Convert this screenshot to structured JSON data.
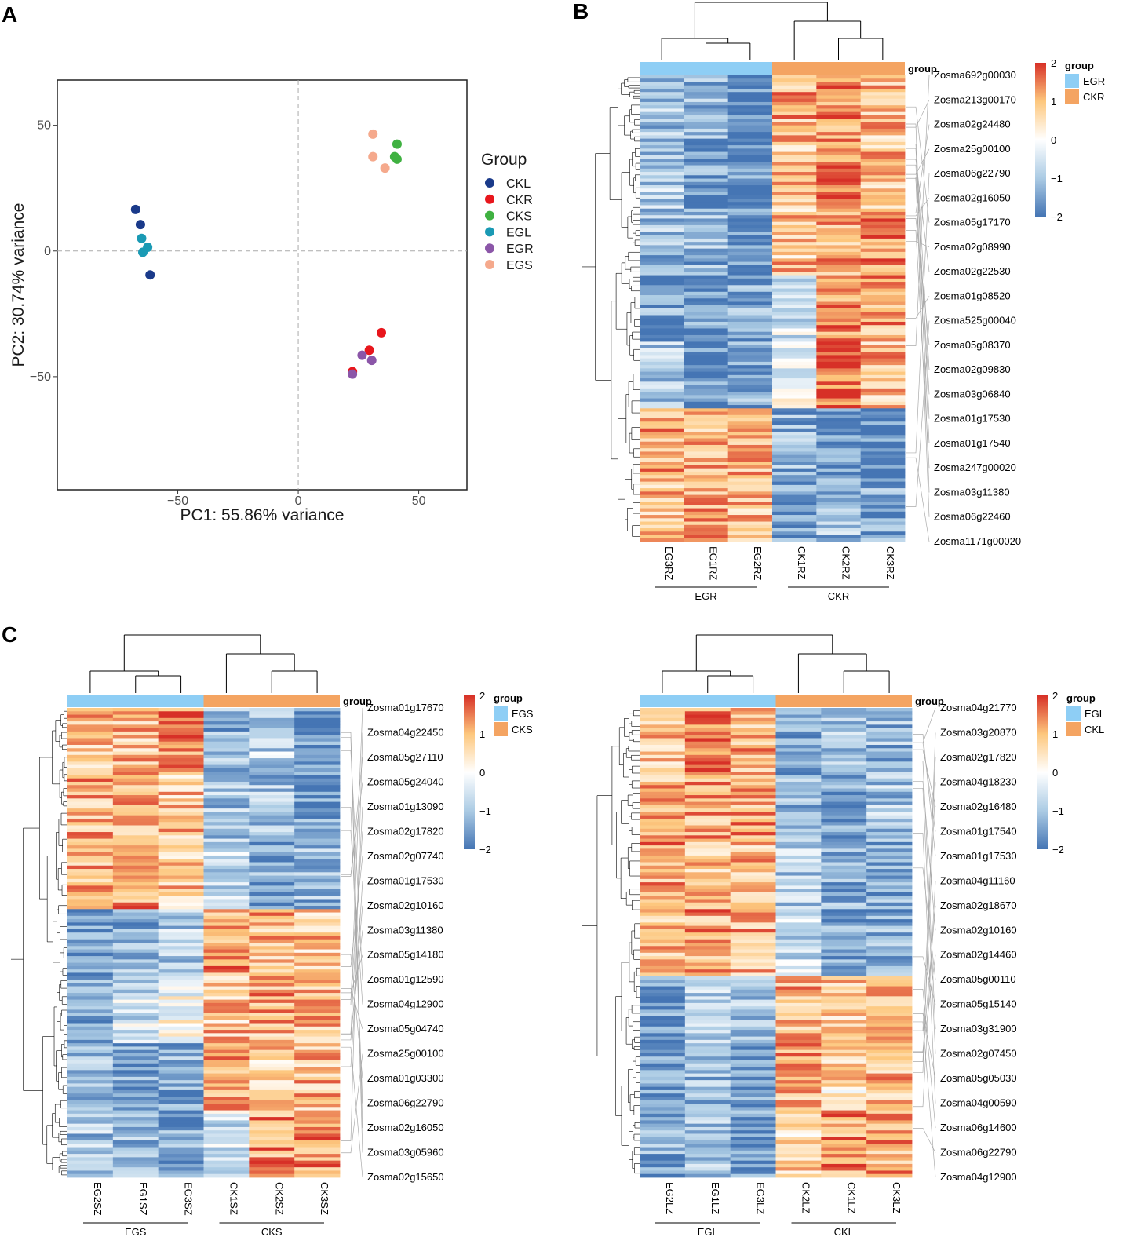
{
  "panels": {
    "a": "A",
    "b": "B",
    "c": "C"
  },
  "chart_data": [
    {
      "type": "scatter",
      "panel": "A",
      "xlabel": "PC1: 55.86% variance",
      "ylabel": "PC2: 30.74% variance",
      "xlim": [
        -100,
        70
      ],
      "ylim": [
        -95,
        68
      ],
      "xticks": [
        -50,
        0,
        50
      ],
      "yticks": [
        -50,
        0,
        50
      ],
      "xtick_labels": [
        "−50",
        "0",
        "50"
      ],
      "ytick_labels": [
        "−50",
        "0",
        "50"
      ],
      "legend_title": "Group",
      "series": [
        {
          "name": "CKL",
          "color": "#1a3a8a",
          "points": [
            [
              -67.5,
              16.5
            ],
            [
              -65.5,
              10.5
            ],
            [
              -61.5,
              -9.5
            ]
          ]
        },
        {
          "name": "CKR",
          "color": "#e8161c",
          "points": [
            [
              34.5,
              -32.5
            ],
            [
              29.5,
              -39.5
            ],
            [
              22.5,
              -48.0
            ]
          ]
        },
        {
          "name": "CKS",
          "color": "#3fb141",
          "points": [
            [
              41.0,
              42.5
            ],
            [
              40.0,
              37.5
            ],
            [
              41.0,
              36.5
            ]
          ]
        },
        {
          "name": "EGL",
          "color": "#1a9ab4",
          "points": [
            [
              -65.0,
              5.0
            ],
            [
              -62.5,
              1.5
            ],
            [
              -64.5,
              -0.5
            ]
          ]
        },
        {
          "name": "EGR",
          "color": "#8b56a8",
          "points": [
            [
              26.5,
              -41.5
            ],
            [
              30.5,
              -43.5
            ],
            [
              22.5,
              -49.0
            ]
          ]
        },
        {
          "name": "EGS",
          "color": "#f5a98c",
          "points": [
            [
              31.0,
              46.5
            ],
            [
              31.0,
              37.5
            ],
            [
              36.0,
              33.0
            ]
          ]
        }
      ]
    },
    {
      "type": "heatmap",
      "panel": "B",
      "columns": [
        "EG3RZ",
        "EG1RZ",
        "EG2RZ",
        "CK1RZ",
        "CK2RZ",
        "CK3RZ"
      ],
      "groups": [
        "EGR",
        "CKR"
      ],
      "row_pattern": [
        [
          -1,
          -1.2,
          -1.8,
          1.1,
          1.3,
          0.9
        ],
        [
          -0.9,
          -1.5,
          -1.7,
          0.8,
          1.6,
          1.0
        ],
        [
          -1.1,
          -1.2,
          -1.6,
          0.9,
          1.1,
          1.4
        ],
        [
          -1.4,
          -1.6,
          -1.3,
          -0.6,
          1.5,
          1.2
        ],
        [
          -1.0,
          -1.7,
          -1.4,
          -0.3,
          1.7,
          1.0
        ],
        [
          1.1,
          1.0,
          1.0,
          -1.2,
          -1.5,
          -1.8
        ],
        [
          1.0,
          1.1,
          0.9,
          -1.6,
          -1.1,
          -1.4
        ]
      ],
      "genes": [
        "Zosma692g00030",
        "Zosma213g00170",
        "Zosma02g24480",
        "Zosma25g00100",
        "Zosma06g22790",
        "Zosma02g16050",
        "Zosma05g17170",
        "Zosma02g08990",
        "Zosma02g22530",
        "Zosma01g08520",
        "Zosma525g00040",
        "Zosma05g08370",
        "Zosma02g09830",
        "Zosma03g06840",
        "Zosma01g17530",
        "Zosma01g17540",
        "Zosma247g00020",
        "Zosma03g11380",
        "Zosma06g22460",
        "Zosma1171g00020"
      ],
      "legend": {
        "title": "group",
        "ticks": [
          "2",
          "1",
          "0",
          "−1",
          "−2"
        ],
        "groups": [
          "EGR",
          "CKR"
        ]
      },
      "annotation_label": "group"
    },
    {
      "type": "heatmap",
      "panel": "C-left",
      "columns": [
        "EG2SZ",
        "EG1SZ",
        "EG3SZ",
        "CK1SZ",
        "CK2SZ",
        "CK3SZ"
      ],
      "groups": [
        "EGS",
        "CKS"
      ],
      "row_pattern": [
        [
          0.9,
          1.0,
          1.3,
          -1.2,
          -0.8,
          -1.6
        ],
        [
          1.1,
          1.2,
          0.9,
          -1.0,
          -1.1,
          -1.5
        ],
        [
          1.0,
          1.3,
          0.8,
          -0.8,
          -1.4,
          -1.2
        ],
        [
          -1.6,
          -1.2,
          -0.9,
          1.3,
          1.0,
          0.9
        ],
        [
          -1.4,
          -0.6,
          0.0,
          0.9,
          1.1,
          1.0
        ],
        [
          -1.2,
          -1.5,
          -1.3,
          1.2,
          0.8,
          1.0
        ],
        [
          -1.0,
          -1.1,
          -1.4,
          -0.5,
          1.3,
          1.4
        ]
      ],
      "genes": [
        "Zosma01g17670",
        "Zosma04g22450",
        "Zosma05g27110",
        "Zosma05g24040",
        "Zosma01g13090",
        "Zosma02g17820",
        "Zosma02g07740",
        "Zosma01g17530",
        "Zosma02g10160",
        "Zosma03g11380",
        "Zosma05g14180",
        "Zosma01g12590",
        "Zosma04g12900",
        "Zosma05g04740",
        "Zosma25g00100",
        "Zosma01g03300",
        "Zosma06g22790",
        "Zosma02g16050",
        "Zosma03g05960",
        "Zosma02g15650"
      ],
      "legend": {
        "title": "group",
        "ticks": [
          "2",
          "1",
          "0",
          "−1",
          "−2"
        ],
        "groups": [
          "EGS",
          "CKS"
        ]
      },
      "annotation_label": "group"
    },
    {
      "type": "heatmap",
      "panel": "C-right",
      "columns": [
        "EG2LZ",
        "EG1LZ",
        "EG3LZ",
        "CK2LZ",
        "CK1LZ",
        "CK3LZ"
      ],
      "groups": [
        "EGL",
        "CKL"
      ],
      "row_pattern": [
        [
          0.8,
          1.4,
          1.1,
          -1.6,
          -1.0,
          -1.2
        ],
        [
          1.0,
          1.1,
          1.2,
          -1.2,
          -1.5,
          -1.0
        ],
        [
          1.2,
          0.9,
          1.0,
          -0.9,
          -1.3,
          -1.4
        ],
        [
          1.0,
          1.2,
          1.1,
          -0.6,
          -1.5,
          -1.3
        ],
        [
          -1.6,
          -0.7,
          -1.1,
          1.0,
          0.9,
          1.2
        ],
        [
          -1.5,
          -1.2,
          -1.4,
          1.1,
          0.6,
          1.0
        ],
        [
          -1.3,
          -1.0,
          -1.6,
          0.7,
          1.3,
          1.1
        ]
      ],
      "genes": [
        "Zosma04g21770",
        "Zosma03g20870",
        "Zosma02g17820",
        "Zosma04g18230",
        "Zosma02g16480",
        "Zosma01g17540",
        "Zosma01g17530",
        "Zosma04g11160",
        "Zosma02g18670",
        "Zosma02g10160",
        "Zosma02g14460",
        "Zosma05g00110",
        "Zosma05g15140",
        "Zosma03g31900",
        "Zosma02g07450",
        "Zosma05g05030",
        "Zosma04g00590",
        "Zosma06g14600",
        "Zosma06g22790",
        "Zosma04g12900"
      ],
      "legend": {
        "title": "group",
        "ticks": [
          "2",
          "1",
          "0",
          "−1",
          "−2"
        ],
        "groups": [
          "EGL",
          "CKL"
        ]
      },
      "annotation_label": "group"
    }
  ],
  "colors": {
    "heat_low": "#4575b4",
    "heat_mid": "#ffffff",
    "heat_high": "#d73027",
    "group_eg": "#8ecef5",
    "group_ck": "#f4a462"
  }
}
